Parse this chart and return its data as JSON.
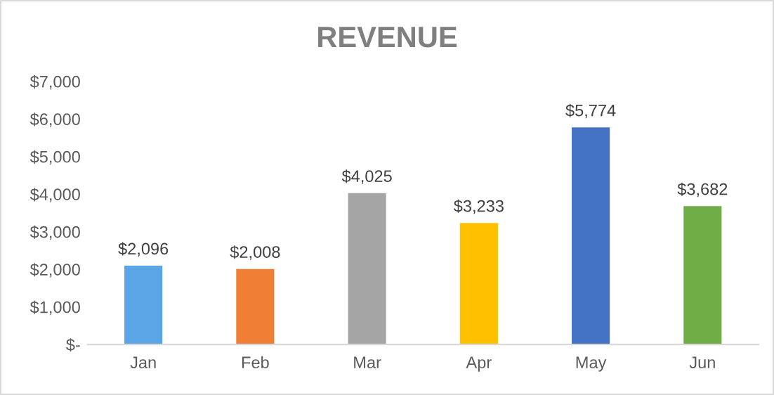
{
  "chart_data": {
    "type": "bar",
    "title": "REVENUE",
    "categories": [
      "Jan",
      "Feb",
      "Mar",
      "Apr",
      "May",
      "Jun"
    ],
    "values": [
      2096,
      2008,
      4025,
      3233,
      5774,
      3682
    ],
    "colors": [
      "#5aa5e6",
      "#f07f35",
      "#a5a5a5",
      "#ffc000",
      "#4472c4",
      "#70ad47"
    ],
    "value_labels": [
      "$2,096",
      "$2,008",
      "$4,025",
      "$3,233",
      "$5,774",
      "$3,682"
    ],
    "ylim": [
      0,
      7000
    ],
    "yticks": [
      {
        "value": 0,
        "label": "$-"
      },
      {
        "value": 1000,
        "label": "$1,000"
      },
      {
        "value": 2000,
        "label": "$2,000"
      },
      {
        "value": 3000,
        "label": "$3,000"
      },
      {
        "value": 4000,
        "label": "$4,000"
      },
      {
        "value": 5000,
        "label": "$5,000"
      },
      {
        "value": 6000,
        "label": "$6,000"
      },
      {
        "value": 7000,
        "label": "$7,000"
      }
    ],
    "grid": false,
    "legend": false
  }
}
